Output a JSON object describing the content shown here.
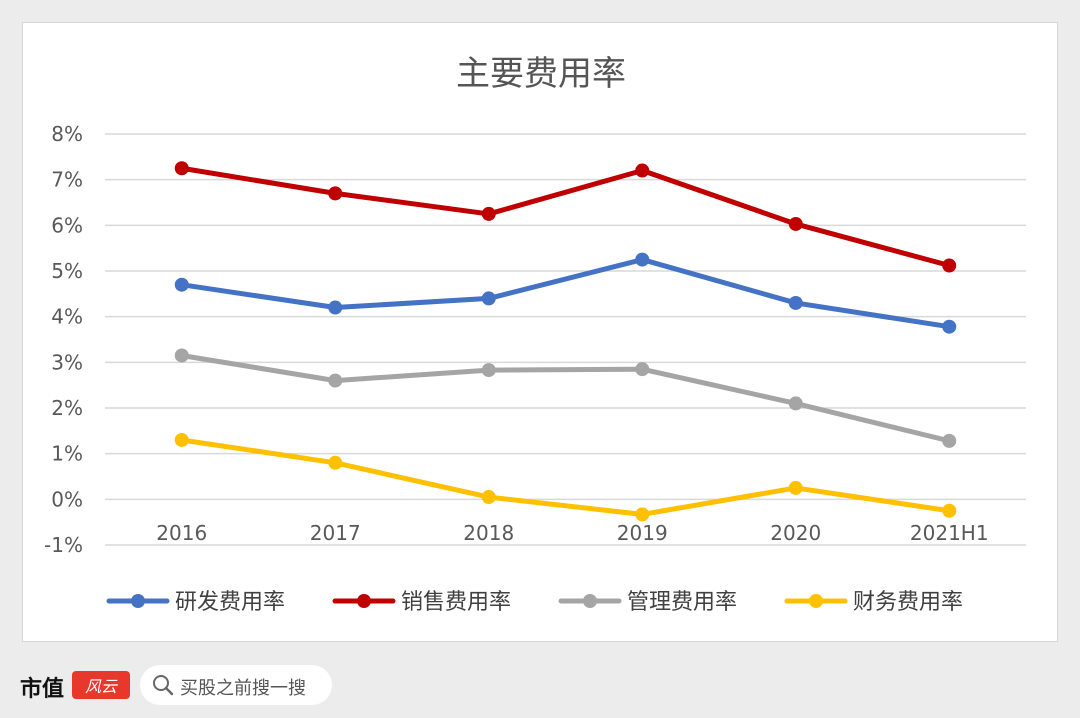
{
  "chart_data": {
    "type": "line",
    "title": "主要费用率",
    "categories": [
      "2016",
      "2017",
      "2018",
      "2019",
      "2020",
      "2021H1"
    ],
    "y_ticks": [
      "8%",
      "7%",
      "6%",
      "5%",
      "4%",
      "3%",
      "2%",
      "1%",
      "0%",
      "-1%"
    ],
    "ylim": [
      -1,
      8
    ],
    "grid": true,
    "legend_position": "bottom",
    "series": [
      {
        "name": "研发费用率",
        "color": "#4472C4",
        "values": [
          4.7,
          4.2,
          4.4,
          5.25,
          4.3,
          3.78
        ]
      },
      {
        "name": "销售费用率",
        "color": "#C00000",
        "values": [
          7.25,
          6.7,
          6.25,
          7.2,
          6.03,
          5.12
        ]
      },
      {
        "name": "管理费用率",
        "color": "#A5A5A5",
        "values": [
          3.15,
          2.6,
          2.83,
          2.85,
          2.1,
          1.28
        ]
      },
      {
        "name": "财务费用率",
        "color": "#FFC000",
        "values": [
          1.3,
          0.8,
          0.05,
          -0.33,
          0.25,
          -0.25
        ]
      }
    ]
  },
  "footer": {
    "brand": "市值",
    "logo_text": "风云",
    "search_placeholder": "买股之前搜一搜"
  }
}
